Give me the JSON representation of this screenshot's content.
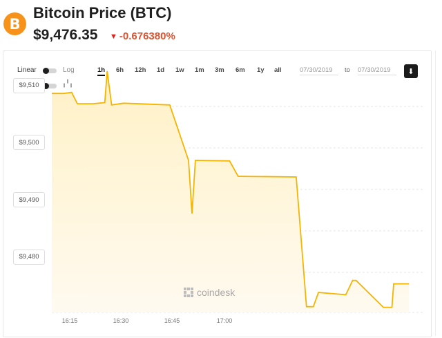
{
  "header": {
    "logo_symbol": "B",
    "title": "Bitcoin Price (BTC)",
    "price": "$9,476.35",
    "change_arrow": "▼",
    "change": "-0.676380%"
  },
  "controls": {
    "linear_label": "Linear",
    "log_label": "Log",
    "line_icon": "line-chart-icon",
    "candle_icon": "candlestick-icon",
    "ranges": [
      "1h",
      "6h",
      "12h",
      "1d",
      "1w",
      "1m",
      "3m",
      "6m",
      "1y",
      "all"
    ],
    "active_range": "1h",
    "date_from": "07/30/2019",
    "date_to_label": "to",
    "date_to": "07/30/2019",
    "download_icon": "download-icon"
  },
  "watermark": "coindesk",
  "colors": {
    "accent": "#f7931a",
    "line": "#f5b400",
    "fill": "#fff7df",
    "negative": "#e0522f"
  },
  "chart_data": {
    "type": "line",
    "x_ticks": [
      "16:15",
      "16:30",
      "16:45",
      "17:00"
    ],
    "y_ticks": [
      "$9,480",
      "$9,490",
      "$9,500",
      "$9,510"
    ],
    "y_tick_values": [
      9480,
      9490,
      9500,
      9510
    ],
    "ylim": [
      9470.3,
      9516.0
    ],
    "x_minutes": [
      0,
      3.5,
      5.8,
      7.5,
      12,
      15.5,
      16.2,
      17.5,
      21,
      34.5,
      40,
      41,
      42,
      52,
      54.5,
      55.5,
      71.5,
      74.5,
      76.5,
      78,
      86,
      88,
      89,
      97,
      99.5,
      100,
      101.5,
      104.5
    ],
    "values": [
      9508.6,
      9508.6,
      9508.8,
      9506.8,
      9506.8,
      9507.0,
      9512.5,
      9506.6,
      9506.9,
      9506.6,
      9496.9,
      9487.6,
      9496.9,
      9496.8,
      9494.1,
      9494.1,
      9494.0,
      9471.3,
      9471.3,
      9473.8,
      9473.4,
      9475.9,
      9475.9,
      9471.2,
      9471.2,
      9475.3,
      9475.3,
      9475.3
    ],
    "grid": true,
    "legend": "none"
  }
}
